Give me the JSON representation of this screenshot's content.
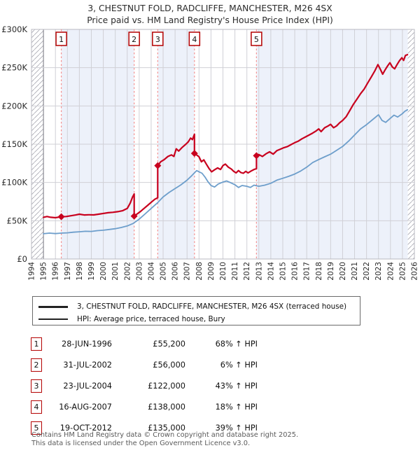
{
  "header": {
    "title_line1": "3, CHESTNUT FOLD, RADCLIFFE, MANCHESTER, M26 4SX",
    "title_line2": "Price paid vs. HM Land Registry's House Price Index (HPI)"
  },
  "legend": {
    "series1_label": "3, CHESTNUT FOLD, RADCLIFFE, MANCHESTER, M26 4SX (terraced house)",
    "series2_label": "HPI: Average price, terraced house, Bury"
  },
  "sales_table": {
    "rows": [
      {
        "num": "1",
        "date": "28-JUN-1996",
        "price": "£55,200",
        "vs_hpi": "68% ↑ HPI"
      },
      {
        "num": "2",
        "date": "31-JUL-2002",
        "price": "£56,000",
        "vs_hpi": "6% ↑ HPI"
      },
      {
        "num": "3",
        "date": "23-JUL-2004",
        "price": "£122,000",
        "vs_hpi": "43% ↑ HPI"
      },
      {
        "num": "4",
        "date": "16-AUG-2007",
        "price": "£138,000",
        "vs_hpi": "18% ↑ HPI"
      },
      {
        "num": "5",
        "date": "19-OCT-2012",
        "price": "£135,000",
        "vs_hpi": "39% ↑ HPI"
      }
    ]
  },
  "footer": {
    "line1": "Contains HM Land Registry data © Crown copyright and database right 2025.",
    "line2": "This data is licensed under the Open Government Licence v3.0."
  },
  "chart_data": {
    "type": "line",
    "x_range": [
      1994,
      2026
    ],
    "y_range_k": [
      0,
      300
    ],
    "grid": true,
    "legend_position": "below",
    "y_ticks": [
      {
        "value": 0,
        "label": "£0"
      },
      {
        "value": 50,
        "label": "£50K"
      },
      {
        "value": 100,
        "label": "£100K"
      },
      {
        "value": 150,
        "label": "£150K"
      },
      {
        "value": 200,
        "label": "£200K"
      },
      {
        "value": 250,
        "label": "£250K"
      },
      {
        "value": 300,
        "label": "£300K"
      }
    ],
    "x_tick_labels": [
      "1994",
      "1995",
      "1996",
      "1997",
      "1998",
      "1999",
      "2000",
      "2001",
      "2002",
      "2003",
      "2004",
      "2005",
      "2006",
      "2007",
      "2008",
      "2009",
      "2010",
      "2011",
      "2012",
      "2013",
      "2014",
      "2015",
      "2016",
      "2017",
      "2018",
      "2019",
      "2020",
      "2021",
      "2022",
      "2023",
      "2024",
      "2025",
      "2026"
    ],
    "colors": {
      "price_line": "#c8001e",
      "hpi_line": "#6d9ecb",
      "sale_box_border": "#b40000",
      "sale_dashed_line": "#f49090",
      "ownership_band": "#edf1fa",
      "gridline": "#d0d0d6",
      "plot_border": "#b8b8c0",
      "hatch_stroke": "#a9a9b2",
      "axis_text": "#2b2b2b"
    },
    "hatch_regions": [
      [
        1994,
        1995
      ],
      [
        2025.45,
        2026
      ]
    ],
    "shaded_ownership_bands": [
      [
        1996.49,
        2002.58
      ],
      [
        2004.55,
        2007.62
      ],
      [
        2012.8,
        2025.45
      ]
    ],
    "sale_markers": [
      {
        "n": "1",
        "year": 1996.49,
        "value_k": 55.2
      },
      {
        "n": "2",
        "year": 2002.58,
        "value_k": 56.0
      },
      {
        "n": "3",
        "year": 2004.55,
        "value_k": 122.0
      },
      {
        "n": "4",
        "year": 2007.62,
        "value_k": 138.0
      },
      {
        "n": "5",
        "year": 2012.8,
        "value_k": 135.0
      }
    ],
    "series": [
      {
        "name": "3, CHESTNUT FOLD, RADCLIFFE, MANCHESTER, M26 4SX (terraced house)",
        "color": "#c8001e",
        "points": [
          [
            1995.0,
            54.5
          ],
          [
            1995.3,
            55.5
          ],
          [
            1995.6,
            54.5
          ],
          [
            1996.0,
            54.0
          ],
          [
            1996.49,
            55.2
          ],
          [
            1996.9,
            55.5
          ],
          [
            1997.3,
            56.5
          ],
          [
            1997.7,
            57.5
          ],
          [
            1998.0,
            58.5
          ],
          [
            1998.4,
            57.5
          ],
          [
            1998.8,
            57.8
          ],
          [
            1999.2,
            57.6
          ],
          [
            1999.6,
            58.5
          ],
          [
            2000.0,
            59.5
          ],
          [
            2000.4,
            60.5
          ],
          [
            2000.8,
            61.0
          ],
          [
            2001.2,
            61.8
          ],
          [
            2001.6,
            63.0
          ],
          [
            2002.0,
            66.0
          ],
          [
            2002.25,
            73.0
          ],
          [
            2002.45,
            81.0
          ],
          [
            2002.58,
            85.0
          ],
          [
            2002.58,
            56.0
          ],
          [
            2002.8,
            58.5
          ],
          [
            2003.1,
            62.0
          ],
          [
            2003.4,
            66.0
          ],
          [
            2003.7,
            70.0
          ],
          [
            2004.0,
            74.0
          ],
          [
            2004.3,
            78.0
          ],
          [
            2004.55,
            80.0
          ],
          [
            2004.55,
            122.0
          ],
          [
            2004.8,
            127.0
          ],
          [
            2005.1,
            130.0
          ],
          [
            2005.4,
            134.0
          ],
          [
            2005.7,
            136.0
          ],
          [
            2005.9,
            134.0
          ],
          [
            2006.1,
            144.0
          ],
          [
            2006.3,
            141.0
          ],
          [
            2006.6,
            146.0
          ],
          [
            2006.9,
            150.0
          ],
          [
            2007.1,
            153.0
          ],
          [
            2007.3,
            158.0
          ],
          [
            2007.45,
            156.0
          ],
          [
            2007.62,
            163.0
          ],
          [
            2007.62,
            138.0
          ],
          [
            2007.8,
            136.0
          ],
          [
            2008.0,
            133.5
          ],
          [
            2008.2,
            127.0
          ],
          [
            2008.4,
            129.5
          ],
          [
            2008.65,
            123.0
          ],
          [
            2008.85,
            118.0
          ],
          [
            2009.05,
            114.0
          ],
          [
            2009.3,
            116.5
          ],
          [
            2009.55,
            119.0
          ],
          [
            2009.8,
            117.0
          ],
          [
            2010.0,
            122.0
          ],
          [
            2010.2,
            124.0
          ],
          [
            2010.45,
            120.0
          ],
          [
            2010.7,
            117.5
          ],
          [
            2010.9,
            114.5
          ],
          [
            2011.1,
            112.5
          ],
          [
            2011.3,
            115.5
          ],
          [
            2011.5,
            113.0
          ],
          [
            2011.7,
            112.0
          ],
          [
            2011.9,
            114.5
          ],
          [
            2012.1,
            112.5
          ],
          [
            2012.35,
            115.0
          ],
          [
            2012.6,
            117.0
          ],
          [
            2012.8,
            118.0
          ],
          [
            2012.8,
            135.0
          ],
          [
            2013.0,
            136.5
          ],
          [
            2013.3,
            134.0
          ],
          [
            2013.6,
            137.5
          ],
          [
            2013.9,
            140.0
          ],
          [
            2014.2,
            137.0
          ],
          [
            2014.5,
            141.5
          ],
          [
            2014.8,
            143.5
          ],
          [
            2015.1,
            145.5
          ],
          [
            2015.4,
            147.0
          ],
          [
            2015.7,
            149.5
          ],
          [
            2016.0,
            152.0
          ],
          [
            2016.3,
            154.0
          ],
          [
            2016.6,
            157.0
          ],
          [
            2016.9,
            159.5
          ],
          [
            2017.2,
            162.0
          ],
          [
            2017.5,
            164.5
          ],
          [
            2017.8,
            167.5
          ],
          [
            2018.0,
            170.0
          ],
          [
            2018.2,
            166.5
          ],
          [
            2018.5,
            171.5
          ],
          [
            2018.8,
            174.0
          ],
          [
            2019.0,
            176.0
          ],
          [
            2019.25,
            171.5
          ],
          [
            2019.5,
            174.0
          ],
          [
            2019.75,
            178.0
          ],
          [
            2020.0,
            181.0
          ],
          [
            2020.3,
            186.0
          ],
          [
            2020.6,
            194.0
          ],
          [
            2020.9,
            202.0
          ],
          [
            2021.2,
            209.0
          ],
          [
            2021.5,
            216.0
          ],
          [
            2021.8,
            222.0
          ],
          [
            2022.1,
            230.0
          ],
          [
            2022.4,
            238.0
          ],
          [
            2022.7,
            246.0
          ],
          [
            2022.95,
            254.0
          ],
          [
            2023.15,
            248.0
          ],
          [
            2023.35,
            241.5
          ],
          [
            2023.55,
            247.0
          ],
          [
            2023.75,
            252.0
          ],
          [
            2023.95,
            256.5
          ],
          [
            2024.15,
            251.0
          ],
          [
            2024.35,
            248.5
          ],
          [
            2024.55,
            254.0
          ],
          [
            2024.75,
            259.0
          ],
          [
            2024.95,
            263.0
          ],
          [
            2025.1,
            259.5
          ],
          [
            2025.25,
            266.0
          ],
          [
            2025.42,
            267.0
          ]
        ]
      },
      {
        "name": "HPI: Average price, terraced house, Bury",
        "color": "#6d9ecb",
        "points": [
          [
            1995.0,
            33.0
          ],
          [
            1995.5,
            33.8
          ],
          [
            1996.0,
            33.2
          ],
          [
            1996.5,
            33.8
          ],
          [
            1997.0,
            34.2
          ],
          [
            1997.5,
            35.0
          ],
          [
            1998.0,
            35.6
          ],
          [
            1998.5,
            36.2
          ],
          [
            1999.0,
            36.0
          ],
          [
            1999.5,
            37.0
          ],
          [
            2000.0,
            37.6
          ],
          [
            2000.5,
            38.6
          ],
          [
            2001.0,
            39.6
          ],
          [
            2001.5,
            41.2
          ],
          [
            2002.0,
            43.2
          ],
          [
            2002.5,
            46.5
          ],
          [
            2003.0,
            52.0
          ],
          [
            2003.5,
            59.0
          ],
          [
            2004.0,
            66.0
          ],
          [
            2004.5,
            73.0
          ],
          [
            2005.0,
            81.0
          ],
          [
            2005.5,
            87.0
          ],
          [
            2006.0,
            92.0
          ],
          [
            2006.5,
            97.0
          ],
          [
            2007.0,
            103.0
          ],
          [
            2007.4,
            109.0
          ],
          [
            2007.8,
            115.5
          ],
          [
            2008.0,
            114.0
          ],
          [
            2008.25,
            112.0
          ],
          [
            2008.5,
            107.0
          ],
          [
            2008.75,
            101.0
          ],
          [
            2009.0,
            96.0
          ],
          [
            2009.3,
            94.0
          ],
          [
            2009.6,
            98.0
          ],
          [
            2010.0,
            100.5
          ],
          [
            2010.3,
            102.0
          ],
          [
            2010.6,
            100.0
          ],
          [
            2011.0,
            97.0
          ],
          [
            2011.3,
            93.5
          ],
          [
            2011.6,
            96.0
          ],
          [
            2012.0,
            95.0
          ],
          [
            2012.3,
            93.5
          ],
          [
            2012.6,
            96.5
          ],
          [
            2013.0,
            95.0
          ],
          [
            2013.5,
            96.5
          ],
          [
            2014.0,
            99.0
          ],
          [
            2014.5,
            103.0
          ],
          [
            2015.0,
            105.5
          ],
          [
            2015.5,
            108.0
          ],
          [
            2016.0,
            111.0
          ],
          [
            2016.5,
            115.0
          ],
          [
            2017.0,
            120.0
          ],
          [
            2017.5,
            126.0
          ],
          [
            2018.0,
            130.0
          ],
          [
            2018.5,
            133.5
          ],
          [
            2019.0,
            137.0
          ],
          [
            2019.5,
            142.0
          ],
          [
            2020.0,
            147.0
          ],
          [
            2020.5,
            154.0
          ],
          [
            2021.0,
            162.0
          ],
          [
            2021.5,
            170.0
          ],
          [
            2022.0,
            175.5
          ],
          [
            2022.5,
            182.0
          ],
          [
            2023.0,
            188.5
          ],
          [
            2023.3,
            181.0
          ],
          [
            2023.6,
            178.5
          ],
          [
            2024.0,
            184.0
          ],
          [
            2024.3,
            188.0
          ],
          [
            2024.6,
            185.5
          ],
          [
            2025.0,
            190.0
          ],
          [
            2025.2,
            193.0
          ],
          [
            2025.42,
            195.0
          ]
        ]
      }
    ]
  }
}
